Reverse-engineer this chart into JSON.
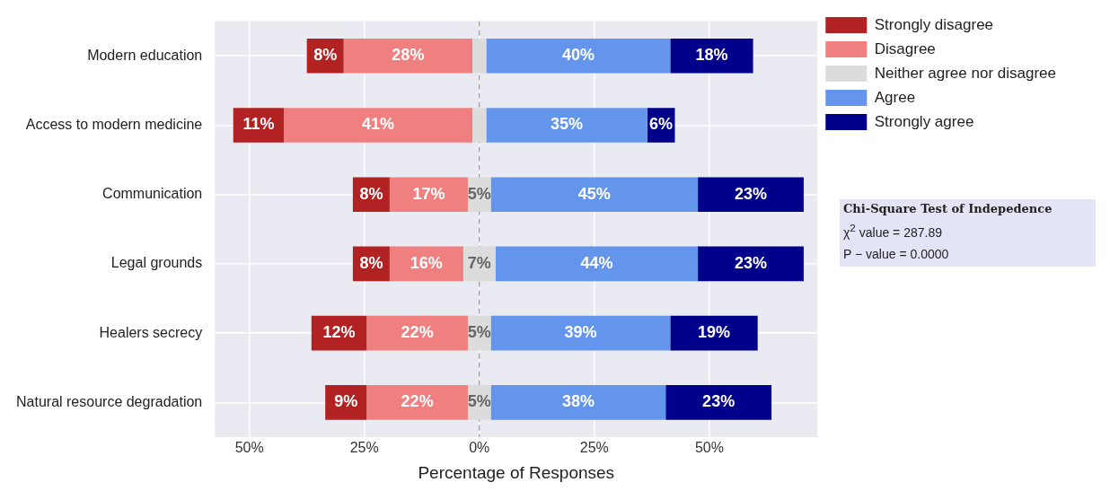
{
  "chart_data": {
    "type": "bar",
    "orientation": "horizontal",
    "xlabel": "Percentage of Responses",
    "categories": [
      "Modern education",
      "Access to modern medicine",
      "Communication",
      "Legal grounds",
      "Healers secrecy",
      "Natural resource degradation"
    ],
    "series": [
      {
        "name": "Strongly disagree",
        "color": "#b22222",
        "base": [
          -37.5,
          -53.5,
          -27.5,
          -27.5,
          -36.5,
          -33.5
        ],
        "values": [
          8,
          11,
          8,
          8,
          12,
          9
        ],
        "value_labels": [
          "8%",
          "11%",
          "8%",
          "8%",
          "12%",
          "9%"
        ]
      },
      {
        "name": "Disagree",
        "color": "#f08080",
        "base": [
          -29.5,
          -42.5,
          -19.5,
          -19.5,
          -24.5,
          -24.5
        ],
        "values": [
          28,
          41,
          17,
          16,
          22,
          22
        ],
        "value_labels": [
          "28%",
          "41%",
          "17%",
          "16%",
          "22%",
          "22%"
        ]
      },
      {
        "name": "Neither agree nor disagree",
        "color": "#dcdcdc",
        "base": [
          -1.5,
          -1.5,
          -2.5,
          -3.5,
          -2.5,
          -2.5
        ],
        "values": [
          3,
          3,
          5,
          7,
          5,
          5
        ],
        "value_labels": [
          null,
          null,
          "5%",
          "7%",
          "5%",
          "5%"
        ]
      },
      {
        "name": "Agree",
        "color": "#6495ed",
        "base": [
          1.5,
          1.5,
          2.5,
          3.5,
          2.5,
          2.5
        ],
        "values": [
          40,
          35,
          45,
          44,
          39,
          38
        ],
        "value_labels": [
          "40%",
          "35%",
          "45%",
          "44%",
          "39%",
          "38%"
        ]
      },
      {
        "name": "Strongly agree",
        "color": "#00008b",
        "base": [
          41.5,
          36.5,
          47.5,
          47.5,
          41.5,
          40.5
        ],
        "values": [
          18,
          6,
          23,
          23,
          19,
          23
        ],
        "value_labels": [
          "18%",
          "6%",
          "23%",
          "23%",
          "19%",
          "23%"
        ]
      }
    ],
    "xlim": [
      -57.5,
      73.5
    ],
    "xticks": [
      {
        "value": -50,
        "label": "50%"
      },
      {
        "value": -25,
        "label": "25%"
      },
      {
        "value": 0,
        "label": "0%"
      },
      {
        "value": 25,
        "label": "25%"
      },
      {
        "value": 50,
        "label": "50%"
      }
    ],
    "ref_lines": [
      {
        "axis": "x",
        "value": 0,
        "color": "#808080",
        "line_style": "dashed"
      }
    ],
    "grid": true,
    "legend": "top right",
    "annotations": [
      "Chi-Square Test of Indepedence",
      "χ$^{2}$ value = 287.89",
      "P − value = 0.0000"
    ]
  }
}
